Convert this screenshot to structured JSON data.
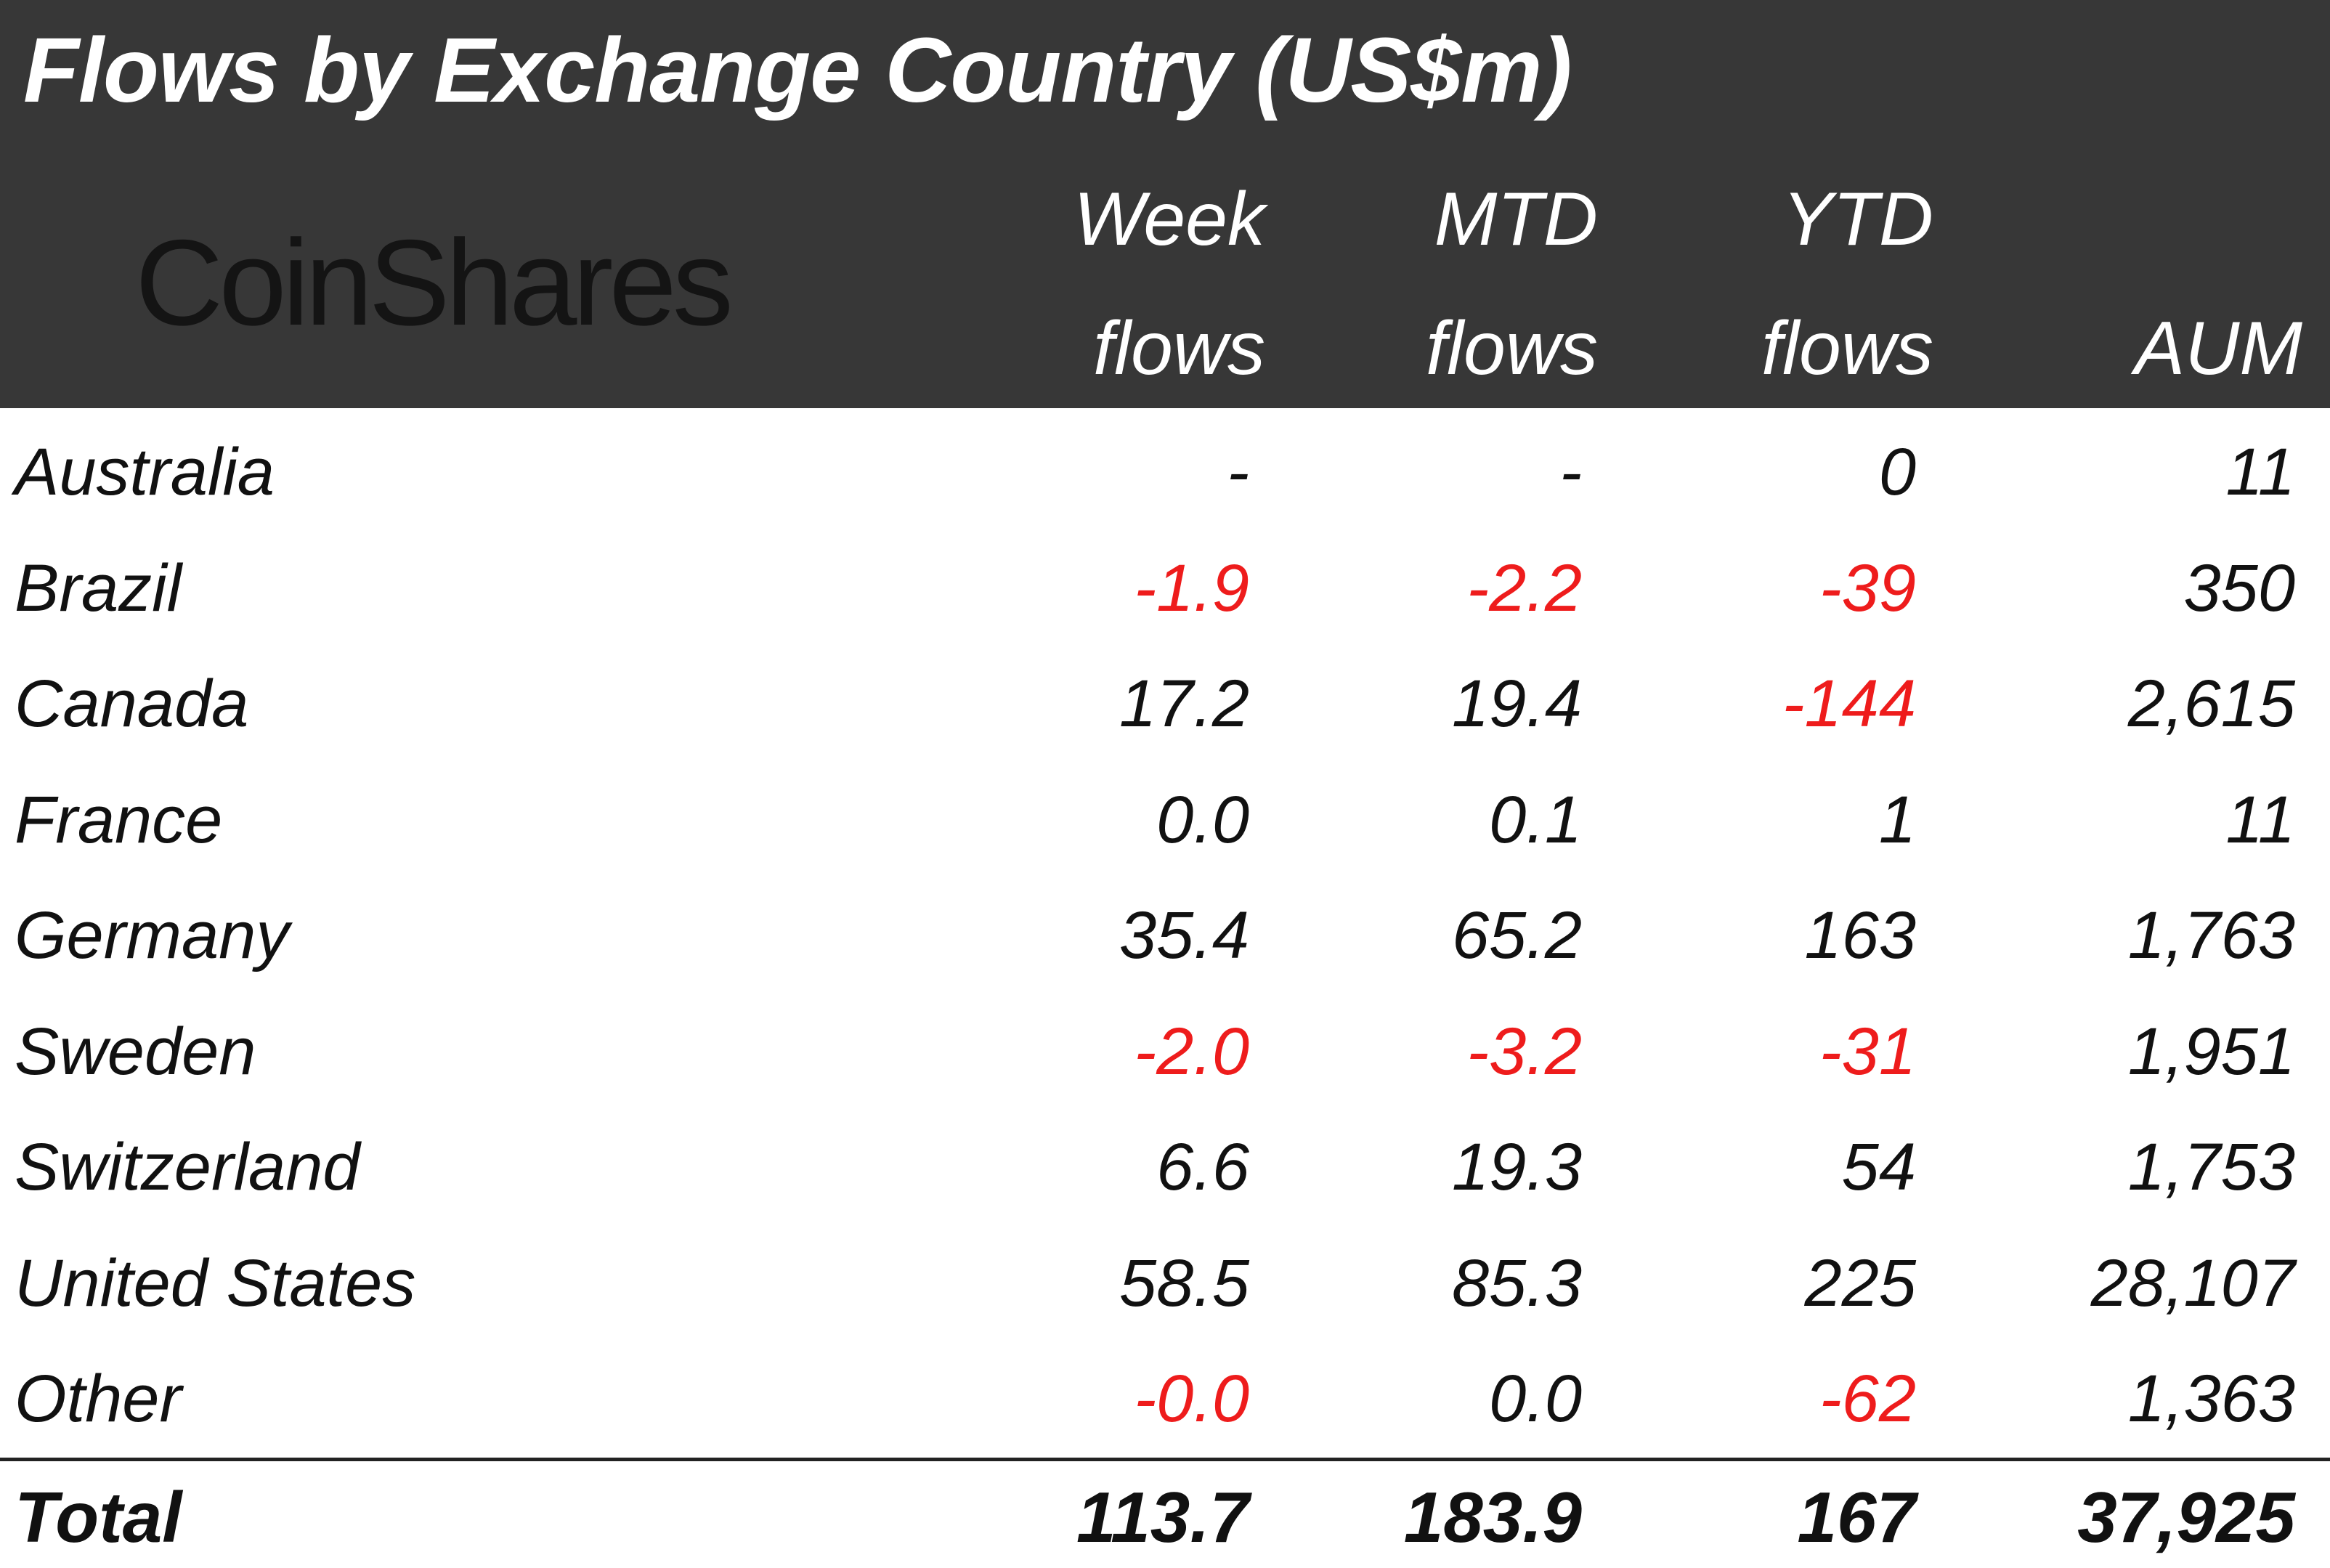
{
  "chart_data": {
    "type": "table",
    "title": "Flows by Exchange Country (US$m)",
    "logo_text": "CoinShares",
    "columns": [
      {
        "key": "country",
        "line1": "",
        "line2": ""
      },
      {
        "key": "week",
        "line1": "Week",
        "line2": "flows"
      },
      {
        "key": "mtd",
        "line1": "MTD",
        "line2": "flows"
      },
      {
        "key": "ytd",
        "line1": "YTD",
        "line2": "flows"
      },
      {
        "key": "aum",
        "line1": "",
        "line2": "AUM"
      }
    ],
    "rows": [
      {
        "country": "Australia",
        "week": "-",
        "mtd": "-",
        "ytd": "0",
        "aum": "11"
      },
      {
        "country": "Brazil",
        "week": "-1.9",
        "mtd": "-2.2",
        "ytd": "-39",
        "aum": "350"
      },
      {
        "country": "Canada",
        "week": "17.2",
        "mtd": "19.4",
        "ytd": "-144",
        "aum": "2,615"
      },
      {
        "country": "France",
        "week": "0.0",
        "mtd": "0.1",
        "ytd": "1",
        "aum": "11"
      },
      {
        "country": "Germany",
        "week": "35.4",
        "mtd": "65.2",
        "ytd": "163",
        "aum": "1,763"
      },
      {
        "country": "Sweden",
        "week": "-2.0",
        "mtd": "-3.2",
        "ytd": "-31",
        "aum": "1,951"
      },
      {
        "country": "Switzerland",
        "week": "6.6",
        "mtd": "19.3",
        "ytd": "54",
        "aum": "1,753"
      },
      {
        "country": "United States",
        "week": "58.5",
        "mtd": "85.3",
        "ytd": "225",
        "aum": "28,107"
      },
      {
        "country": "Other",
        "week": "-0.0",
        "mtd": "0.0",
        "ytd": "-62",
        "aum": "1,363"
      }
    ],
    "total": {
      "country": "Total",
      "week": "113.7",
      "mtd": "183.9",
      "ytd": "167",
      "aum": "37,925"
    },
    "colors": {
      "header_bg": "#373737",
      "header_text": "#ffffff",
      "negative": "#ee1c1c",
      "text": "#111111"
    }
  }
}
